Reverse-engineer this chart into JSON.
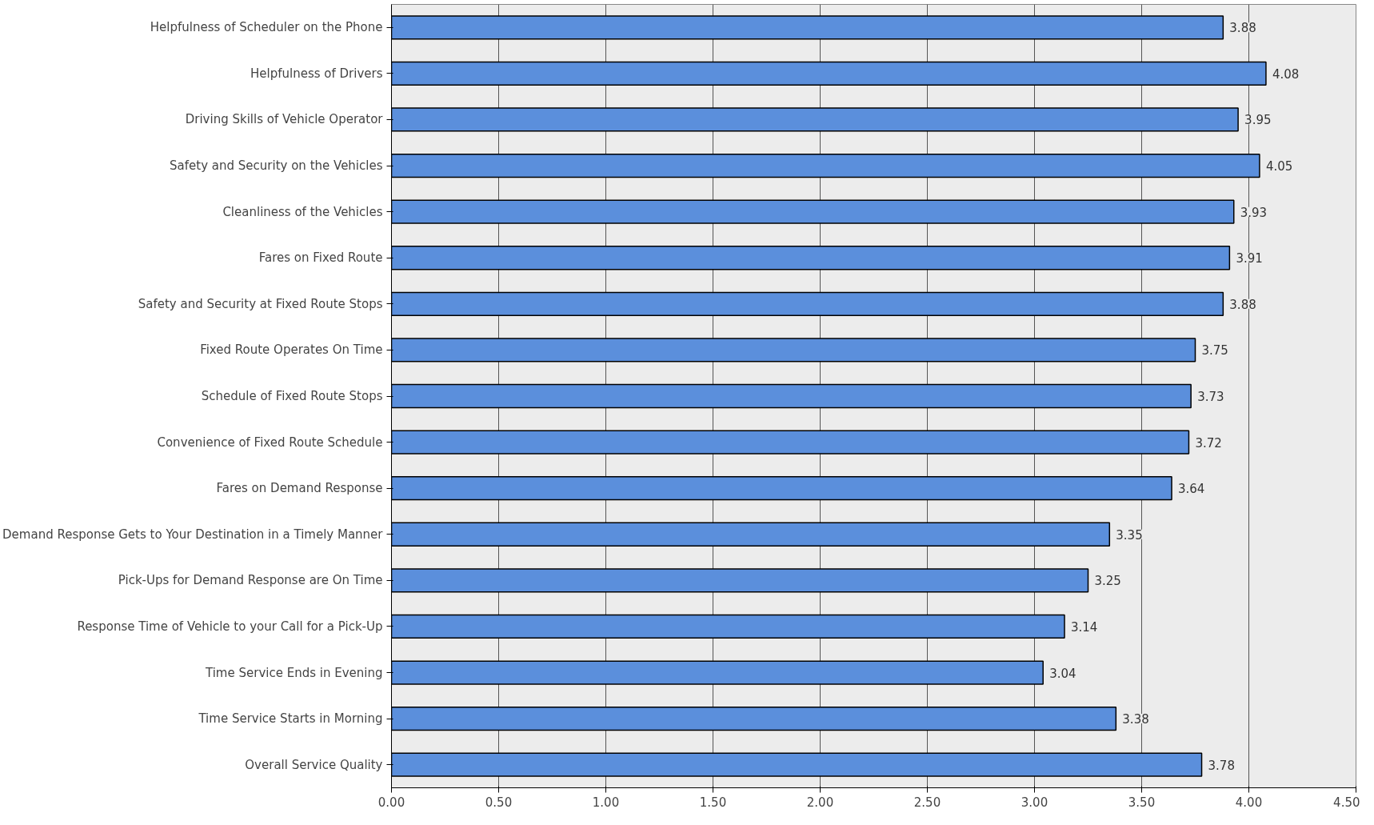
{
  "chart_data": {
    "type": "bar",
    "orientation": "horizontal",
    "categories": [
      "Helpfulness of Scheduler on the Phone",
      "Helpfulness of Drivers",
      "Driving Skills of Vehicle Operator",
      "Safety and Security on the Vehicles",
      "Cleanliness of the Vehicles",
      "Fares on Fixed Route",
      "Safety and Security at Fixed Route Stops",
      "Fixed Route Operates On Time",
      "Schedule of Fixed Route Stops",
      "Convenience of Fixed Route Schedule",
      "Fares on Demand Response",
      "Demand Response Gets to Your Destination in a Timely Manner",
      "Pick-Ups for Demand Response are On Time",
      "Response Time of Vehicle to your Call for a Pick-Up",
      "Time Service Ends in Evening",
      "Time Service Starts in Morning",
      "Overall Service Quality"
    ],
    "values": [
      3.88,
      4.08,
      3.95,
      4.05,
      3.93,
      3.91,
      3.88,
      3.75,
      3.73,
      3.72,
      3.64,
      3.35,
      3.25,
      3.14,
      3.04,
      3.38,
      3.78
    ],
    "color": "#5b8fdc",
    "data_labels": true,
    "grid": "x",
    "xlim": [
      0,
      4.5
    ],
    "xticks": [
      {
        "value": 0,
        "label": "0.00"
      },
      {
        "value": 0.5,
        "label": "0.50"
      },
      {
        "value": 1,
        "label": "1.00"
      },
      {
        "value": 1.5,
        "label": "1.50"
      },
      {
        "value": 2,
        "label": "2.00"
      },
      {
        "value": 2.5,
        "label": "2.50"
      },
      {
        "value": 3,
        "label": "3.00"
      },
      {
        "value": 3.5,
        "label": "3.50"
      },
      {
        "value": 4,
        "label": "4.00"
      },
      {
        "value": 4.5,
        "label": "4.50"
      }
    ]
  }
}
